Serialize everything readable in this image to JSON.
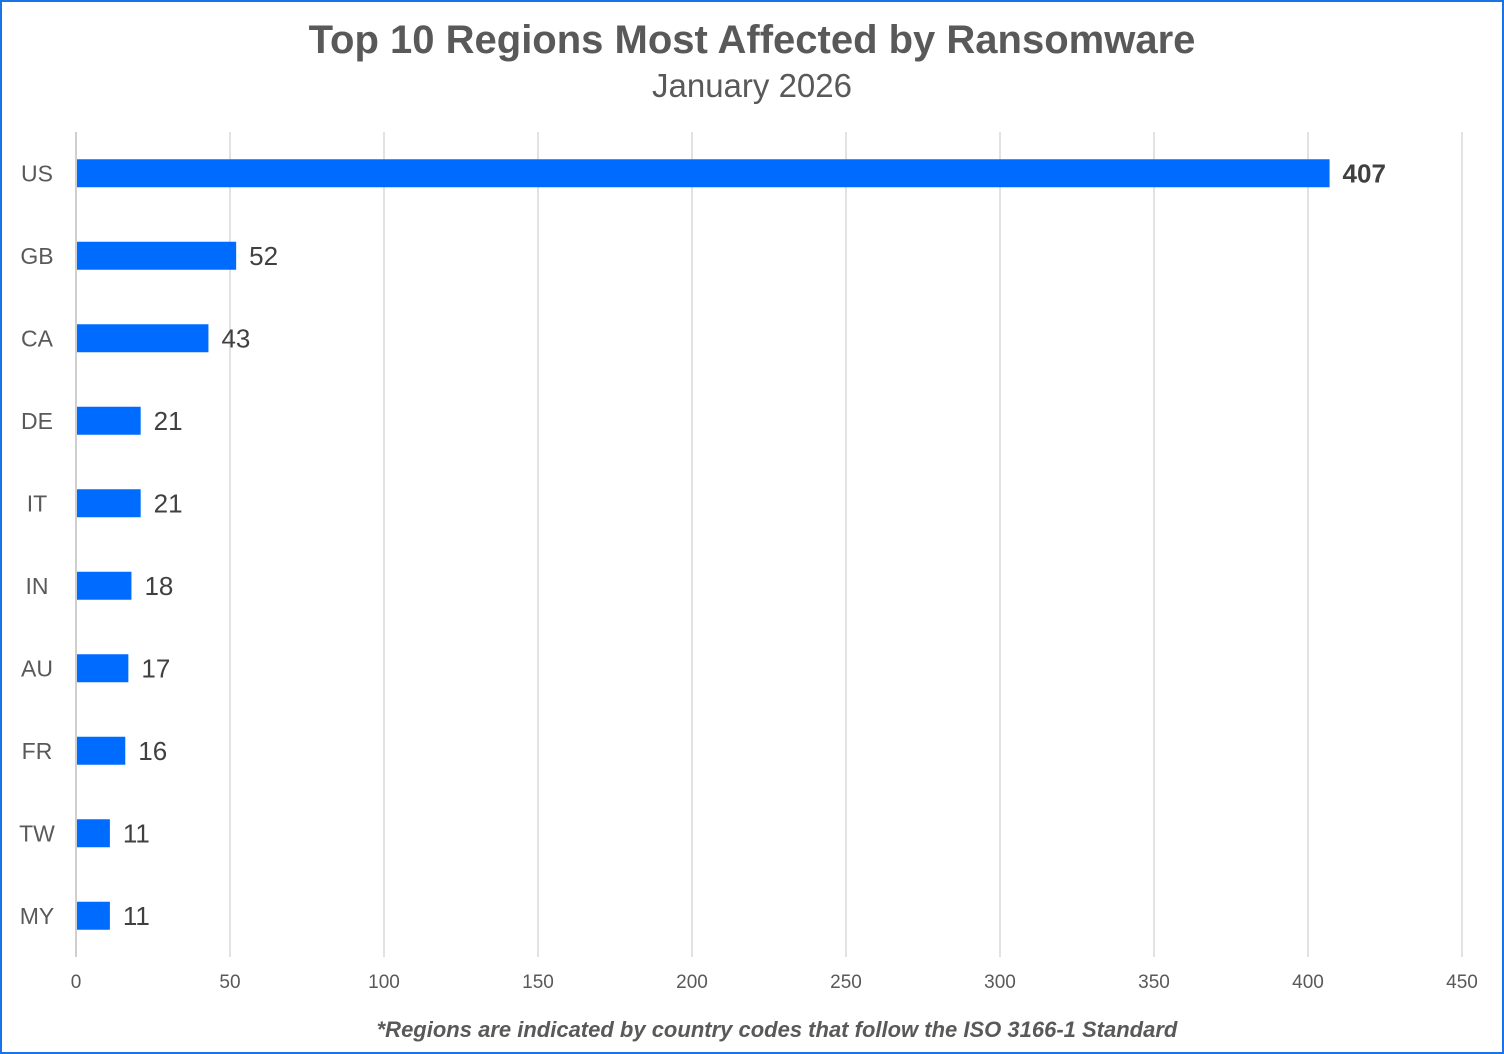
{
  "chart_data": {
    "type": "bar",
    "orientation": "horizontal",
    "title": "Top 10 Regions Most Affected by Ransomware",
    "subtitle": "January  2026",
    "footnote": "*Regions are indicated by country codes that follow the ISO 3166-1 Standard",
    "categories": [
      "US",
      "GB",
      "CA",
      "DE",
      "IT",
      "IN",
      "AU",
      "FR",
      "TW",
      "MY"
    ],
    "values": [
      407,
      52,
      43,
      21,
      21,
      18,
      17,
      16,
      11,
      11
    ],
    "xlim": [
      0,
      450
    ],
    "x_ticks": [
      "0",
      "50",
      "100",
      "150",
      "200",
      "250",
      "300",
      "350",
      "400",
      "450"
    ],
    "grid": true,
    "legend": "none",
    "bar_color": "#006cff",
    "highlight_bold_label": "US"
  }
}
